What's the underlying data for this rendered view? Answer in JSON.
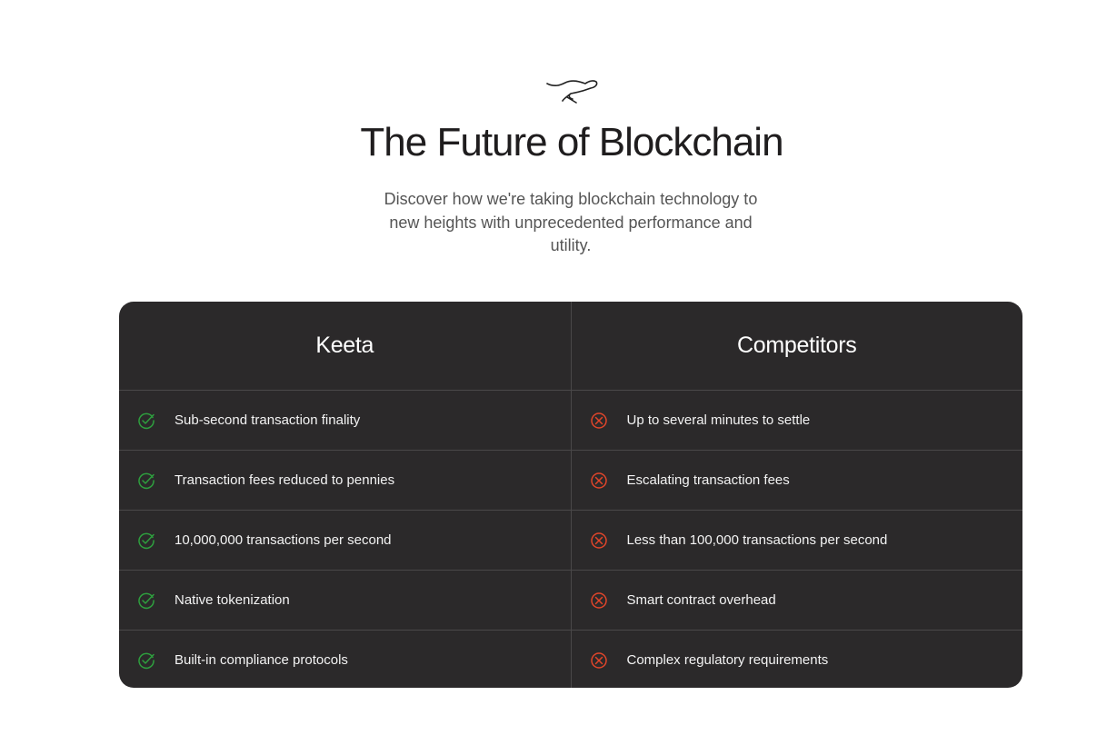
{
  "header": {
    "title": "The Future of Blockchain",
    "subtitle": "Discover how we're taking blockchain technology to new heights with unprecedented performance and utility.",
    "logo": "kangaroo-logo"
  },
  "comparison": {
    "columns": [
      "Keeta",
      "Competitors"
    ],
    "colors": {
      "check": "#2e9e3e",
      "cross": "#e0452a",
      "background": "#2b292a"
    },
    "rows": [
      {
        "keeta": "Sub-second transaction finality",
        "competitors": "Up to several minutes to settle"
      },
      {
        "keeta": "Transaction fees reduced to pennies",
        "competitors": "Escalating transaction fees"
      },
      {
        "keeta": "10,000,000 transactions per second",
        "competitors": "Less than 100,000 transactions per second"
      },
      {
        "keeta": "Native tokenization",
        "competitors": "Smart contract overhead"
      },
      {
        "keeta": "Built-in compliance protocols",
        "competitors": "Complex regulatory requirements"
      }
    ]
  }
}
